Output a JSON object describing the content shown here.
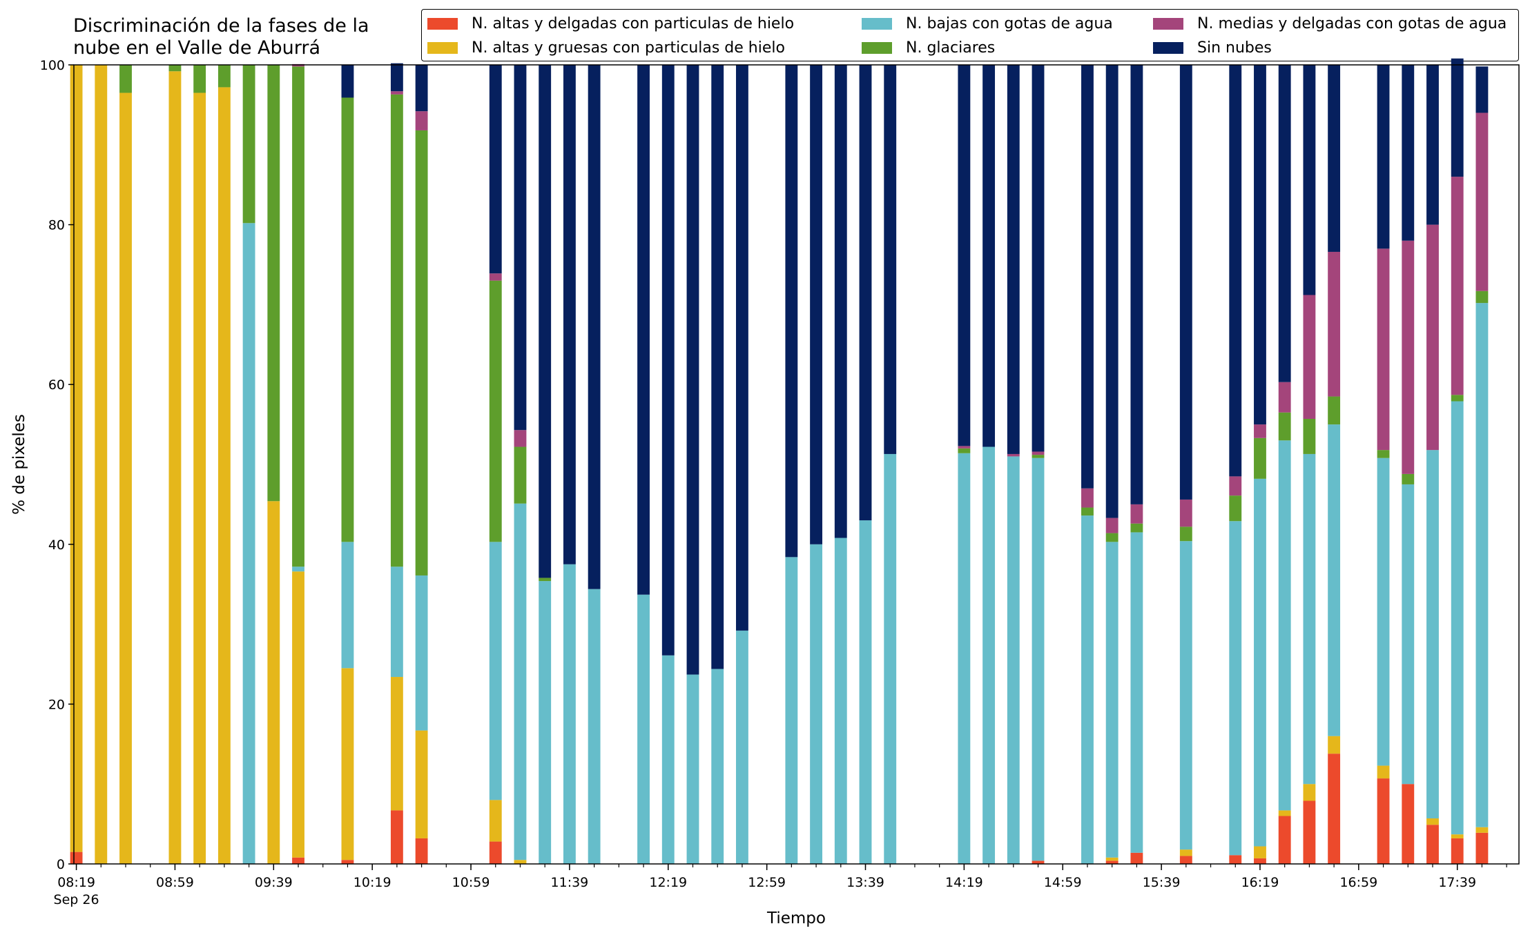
{
  "chart_data": {
    "type": "bar",
    "stacked": true,
    "title": "Discriminación de la fases de la\nnube en el Valle de Aburrá",
    "xlabel": "Tiempo",
    "ylabel": "% de pixeles",
    "ylim": [
      0,
      100
    ],
    "yticks": [
      0,
      20,
      40,
      60,
      80,
      100
    ],
    "xlim": [
      "08:18",
      "18:04"
    ],
    "x_tick_labels": [
      "08:19",
      "08:59",
      "09:39",
      "10:19",
      "10:59",
      "11:39",
      "12:19",
      "12:59",
      "13:39",
      "14:19",
      "14:59",
      "15:39",
      "16:19",
      "16:59",
      "17:39"
    ],
    "x_tick_sublabel": "Sep 26",
    "minor_tick_step_minutes": 10,
    "bar_width_minutes": 5,
    "legend_placement": "top",
    "times": [
      "08:19",
      "08:29",
      "08:39",
      "08:59",
      "09:09",
      "09:19",
      "09:29",
      "09:39",
      "09:49",
      "10:09",
      "10:29",
      "10:39",
      "11:09",
      "11:19",
      "11:29",
      "11:39",
      "11:49",
      "12:09",
      "12:19",
      "12:29",
      "12:39",
      "12:49",
      "13:09",
      "13:19",
      "13:29",
      "13:39",
      "13:49",
      "14:19",
      "14:29",
      "14:39",
      "14:49",
      "15:09",
      "15:19",
      "15:29",
      "15:49",
      "16:09",
      "16:19",
      "16:29",
      "16:39",
      "16:49",
      "17:09",
      "17:19",
      "17:29",
      "17:39",
      "17:49"
    ],
    "series": [
      {
        "name": "N. altas y delgadas con particulas de hielo",
        "color": "#ec4a2c",
        "values": [
          1.5,
          0,
          0,
          0,
          0,
          0,
          0,
          0,
          0.8,
          0.5,
          6.7,
          3.2,
          2.8,
          0,
          0,
          0,
          0,
          0,
          0,
          0,
          0,
          0,
          0,
          0,
          0,
          0,
          0,
          0,
          0,
          0,
          0.4,
          0,
          0.4,
          1.4,
          1,
          1.1,
          0.7,
          6,
          7.9,
          13.8,
          10.7,
          10,
          4.9,
          3.2,
          3.9
        ]
      },
      {
        "name": "N. altas y gruesas con particulas de hielo",
        "color": "#e5b71b",
        "values": [
          98.5,
          100,
          96.5,
          99.2,
          96.5,
          97.2,
          0,
          45.4,
          35.8,
          24,
          16.7,
          13.5,
          5.2,
          0.5,
          0,
          0,
          0,
          0,
          0,
          0,
          0,
          0,
          0,
          0,
          0,
          0,
          0,
          0,
          0,
          0,
          0,
          0,
          0.4,
          0,
          0.8,
          0,
          1.5,
          0.7,
          2.1,
          2.2,
          1.6,
          0,
          0.8,
          0.5,
          0.7
        ]
      },
      {
        "name": "N. bajas con gotas de agua",
        "color": "#66bdca",
        "values": [
          0,
          0,
          0,
          0,
          0,
          0,
          80.2,
          0,
          0.6,
          15.8,
          13.8,
          19.4,
          32.3,
          44.6,
          35.4,
          37.5,
          34.4,
          33.7,
          26.1,
          23.7,
          24.4,
          29.2,
          38.4,
          40,
          40.8,
          43,
          51.3,
          51.4,
          52.2,
          51,
          50.4,
          43.6,
          39.5,
          40.1,
          38.6,
          41.8,
          46,
          46.3,
          41.3,
          39,
          38.5,
          37.5,
          46.1,
          54.2,
          65.6
        ]
      },
      {
        "name": "N. glaciares",
        "color": "#5e9e2c",
        "values": [
          0,
          0,
          3.5,
          0.8,
          3.5,
          2.8,
          19.8,
          54.6,
          62.6,
          55.6,
          59.1,
          55.7,
          32.7,
          7.1,
          0.4,
          0,
          0,
          0,
          0,
          0,
          0,
          0,
          0,
          0,
          0,
          0,
          0,
          0.6,
          0,
          0,
          0.4,
          1,
          1.1,
          1.1,
          1.8,
          3.2,
          5.1,
          3.5,
          4.4,
          3.5,
          1,
          1.3,
          0,
          0.8,
          1.5
        ]
      },
      {
        "name": "N. medias y delgadas con gotas de agua",
        "color": "#a4457b",
        "values": [
          0,
          0,
          0,
          0,
          0,
          0,
          0,
          0,
          0.3,
          0,
          0.4,
          2.4,
          0.9,
          2.1,
          0,
          0,
          0,
          0,
          0,
          0,
          0,
          0,
          0,
          0,
          0,
          0,
          0,
          0.3,
          0,
          0.3,
          0.4,
          2.4,
          1.9,
          2.4,
          3.4,
          2.4,
          1.7,
          3.8,
          15.5,
          18.1,
          25.2,
          29.2,
          28.2,
          27.3,
          22.3
        ]
      },
      {
        "name": "Sin nubes",
        "color": "#06205e",
        "values": [
          0,
          0,
          0,
          0,
          0,
          0,
          0,
          0,
          0,
          4.1,
          3.5,
          5.8,
          26.1,
          45.7,
          64.2,
          62.5,
          65.6,
          66.3,
          73.9,
          76.3,
          75.6,
          70.8,
          61.6,
          60,
          59.2,
          57,
          48.7,
          47.7,
          47.8,
          48.7,
          48.4,
          53,
          56.7,
          55,
          54.4,
          51.5,
          45,
          39.7,
          28.8,
          23.4,
          23,
          22,
          20,
          14.8,
          5.8
        ]
      }
    ]
  }
}
